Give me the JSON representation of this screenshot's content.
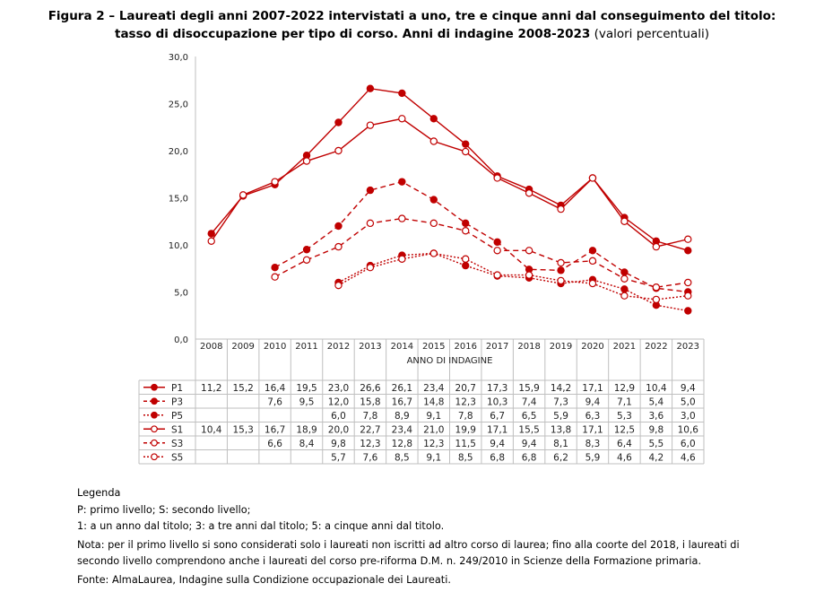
{
  "title": {
    "line1": "Figura 2 – Laureati degli anni 2007-2022 intervistati a uno, tre e cinque anni dal conseguimento del titolo:",
    "line2_bold": "tasso di disoccupazione per tipo di corso. Anni di indagine 2008-2023",
    "line2_normal": " (valori percentuali)"
  },
  "chart_data": {
    "type": "line",
    "xlabel": "ANNO DI INDAGINE",
    "ylabel": "",
    "ylim": [
      0,
      30
    ],
    "yticks": [
      "0,0",
      "5,0",
      "10,0",
      "15,0",
      "20,0",
      "25,0",
      "30,0"
    ],
    "grid": false,
    "legend": "data-table-left",
    "color": "#c00000",
    "categories": [
      "2008",
      "2009",
      "2010",
      "2011",
      "2012",
      "2013",
      "2014",
      "2015",
      "2016",
      "2017",
      "2018",
      "2019",
      "2020",
      "2021",
      "2022",
      "2023"
    ],
    "series": [
      {
        "name": "P1",
        "line": "solid",
        "marker": "filled",
        "values": [
          11.2,
          15.2,
          16.4,
          19.5,
          23.0,
          26.6,
          26.1,
          23.4,
          20.7,
          17.3,
          15.9,
          14.2,
          17.1,
          12.9,
          10.4,
          9.4
        ]
      },
      {
        "name": "P3",
        "line": "dashed",
        "marker": "filled",
        "values": [
          null,
          null,
          7.6,
          9.5,
          12.0,
          15.8,
          16.7,
          14.8,
          12.3,
          10.3,
          7.4,
          7.3,
          9.4,
          7.1,
          5.4,
          5.0
        ]
      },
      {
        "name": "P5",
        "line": "dotted",
        "marker": "filled",
        "values": [
          null,
          null,
          null,
          null,
          6.0,
          7.8,
          8.9,
          9.1,
          7.8,
          6.7,
          6.5,
          5.9,
          6.3,
          5.3,
          3.6,
          3.0
        ]
      },
      {
        "name": "S1",
        "line": "solid",
        "marker": "open",
        "values": [
          10.4,
          15.3,
          16.7,
          18.9,
          20.0,
          22.7,
          23.4,
          21.0,
          19.9,
          17.1,
          15.5,
          13.8,
          17.1,
          12.5,
          9.8,
          10.6
        ]
      },
      {
        "name": "S3",
        "line": "dashed",
        "marker": "open",
        "values": [
          null,
          null,
          6.6,
          8.4,
          9.8,
          12.3,
          12.8,
          12.3,
          11.5,
          9.4,
          9.4,
          8.1,
          8.3,
          6.4,
          5.5,
          6.0
        ]
      },
      {
        "name": "S5",
        "line": "dotted",
        "marker": "open",
        "values": [
          null,
          null,
          null,
          null,
          5.7,
          7.6,
          8.5,
          9.1,
          8.5,
          6.8,
          6.8,
          6.2,
          5.9,
          4.6,
          4.2,
          4.6
        ]
      }
    ]
  },
  "notes": {
    "legend_title": "Legenda",
    "legend_1": "P: primo livello; S: secondo livello;",
    "legend_2": "1: a un anno dal titolo; 3: a tre anni dal titolo; 5: a cinque anni dal titolo.",
    "nota_1": "Nota: per il primo livello si sono considerati solo i laureati non iscritti ad altro corso di laurea; fino alla coorte del 2018, i laureati di",
    "nota_2": "secondo livello comprendono anche i laureati del corso pre-riforma D.M. n. 249/2010 in Scienze della Formazione primaria.",
    "fonte": "Fonte: AlmaLaurea, Indagine sulla Condizione occupazionale dei Laureati."
  }
}
